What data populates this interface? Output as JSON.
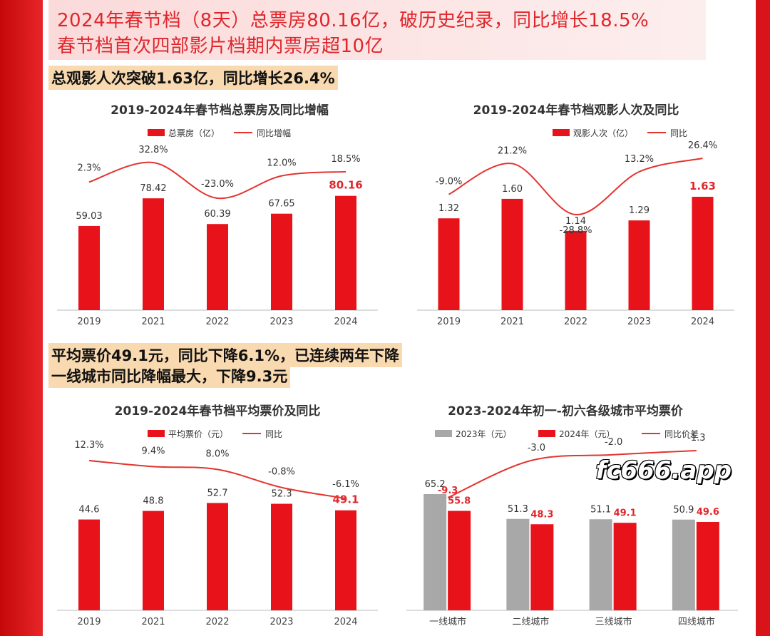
{
  "header": {
    "line1": "2024年春节档（8天）总票房80.16亿，破历史纪录，同比增长18.5%",
    "line2": "春节档首次四部影片档期内票房超10亿"
  },
  "highlights": {
    "h1": "总观影人次突破1.63亿，同比增长26.4%",
    "h2": "平均票价49.1元，同比下降6.1%，已连续两年下降",
    "h3": "一线城市同比降幅最大，下降9.3元"
  },
  "watermark": "fc666.app",
  "colors": {
    "bar": "#e8121a",
    "bar_gray": "#a8a8a8",
    "line": "#e3342f",
    "accent": "#e0262b"
  },
  "chart_data": [
    {
      "id": "boxoffice",
      "type": "bar",
      "title": "2019-2024年春节档总票房及同比增幅",
      "legend": [
        "总票房（亿）",
        "同比增幅"
      ],
      "categories": [
        "2019",
        "2021",
        "2022",
        "2023",
        "2024"
      ],
      "series": [
        {
          "name": "总票房（亿）",
          "type": "bar",
          "values": [
            59.03,
            78.42,
            60.39,
            67.65,
            80.16
          ],
          "labels": [
            "59.03",
            "78.42",
            "60.39",
            "67.65",
            "80.16"
          ]
        },
        {
          "name": "同比增幅",
          "type": "line",
          "values": [
            2.3,
            32.8,
            -23.0,
            12.0,
            18.5
          ],
          "labels": [
            "2.3%",
            "32.8%",
            "-23.0%",
            "12.0%",
            "18.5%"
          ]
        }
      ]
    },
    {
      "id": "audience",
      "type": "bar",
      "title": "2019-2024年春节档观影人次及同比",
      "legend": [
        "观影人次（亿）",
        "同比"
      ],
      "categories": [
        "2019",
        "2021",
        "2022",
        "2023",
        "2024"
      ],
      "series": [
        {
          "name": "观影人次（亿）",
          "type": "bar",
          "values": [
            1.32,
            1.6,
            1.14,
            1.29,
            1.63
          ],
          "labels": [
            "1.32",
            "1.60",
            "1.14",
            "1.29",
            "1.63"
          ]
        },
        {
          "name": "同比",
          "type": "line",
          "values": [
            -9.0,
            21.2,
            -28.8,
            13.2,
            26.4
          ],
          "labels": [
            "-9.0%",
            "21.2%",
            "-28.8%",
            "13.2%",
            "26.4%"
          ]
        }
      ]
    },
    {
      "id": "price",
      "type": "bar",
      "title": "2019-2024年春节档平均票价及同比",
      "legend": [
        "平均票价（元）",
        "同比"
      ],
      "categories": [
        "2019",
        "2021",
        "2022",
        "2023",
        "2024"
      ],
      "series": [
        {
          "name": "平均票价（元）",
          "type": "bar",
          "values": [
            44.6,
            48.8,
            52.7,
            52.3,
            49.1
          ],
          "labels": [
            "44.6",
            "48.8",
            "52.7",
            "52.3",
            "49.1"
          ]
        },
        {
          "name": "同比",
          "type": "line",
          "values": [
            12.3,
            9.4,
            8.0,
            -0.8,
            -6.1
          ],
          "labels": [
            "12.3%",
            "9.4%",
            "8.0%",
            "-0.8%",
            "-6.1%"
          ]
        }
      ]
    },
    {
      "id": "city",
      "type": "bar",
      "title": "2023-2024年初一-初六各级城市平均票价",
      "legend": [
        "2023年（元）",
        "2024年（元）",
        "同比价差"
      ],
      "categories": [
        "一线城市",
        "二线城市",
        "三线城市",
        "四线城市"
      ],
      "series": [
        {
          "name": "2023年（元）",
          "type": "bar",
          "values": [
            65.2,
            51.3,
            51.1,
            50.9
          ],
          "labels": [
            "65.2",
            "51.3",
            "51.1",
            "50.9"
          ]
        },
        {
          "name": "2024年（元）",
          "type": "bar",
          "values": [
            55.8,
            48.3,
            49.1,
            49.6
          ],
          "labels": [
            "55.8",
            "48.3",
            "49.1",
            "49.6"
          ]
        },
        {
          "name": "同比价差",
          "type": "line",
          "values": [
            -9.3,
            -3.0,
            -2.0,
            -1.3
          ],
          "labels": [
            "-9.3",
            "-3.0",
            "-2.0",
            "-1.3"
          ]
        }
      ]
    }
  ]
}
